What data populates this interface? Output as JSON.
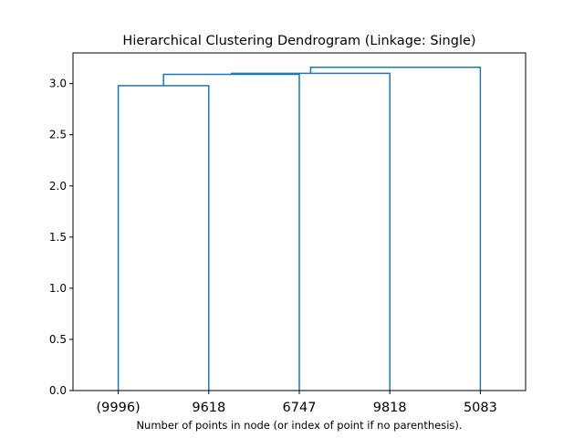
{
  "chart_data": {
    "type": "dendrogram",
    "title": "Hierarchical Clustering Dendrogram (Linkage: Single)",
    "xlabel": "Number of points in node (or index of point if no parenthesis).",
    "ylabel": "",
    "ylim": [
      0,
      3.3
    ],
    "yticks": [
      0.0,
      0.5,
      1.0,
      1.5,
      2.0,
      2.5,
      3.0
    ],
    "ytick_labels": [
      "0.0",
      "0.5",
      "1.0",
      "1.5",
      "2.0",
      "2.5",
      "3.0"
    ],
    "leaves": [
      "(9996)",
      "9618",
      "6747",
      "9818",
      "5083"
    ],
    "merges": [
      {
        "left": "(9996)",
        "right": "9618",
        "height": 2.98
      },
      {
        "left": "cluster-1",
        "right": "6747",
        "height": 3.09
      },
      {
        "left": "cluster-2",
        "right": "9818",
        "height": 3.1
      },
      {
        "left": "cluster-3",
        "right": "5083",
        "height": 3.16
      }
    ],
    "color": "#1f77b4",
    "grid": false
  }
}
